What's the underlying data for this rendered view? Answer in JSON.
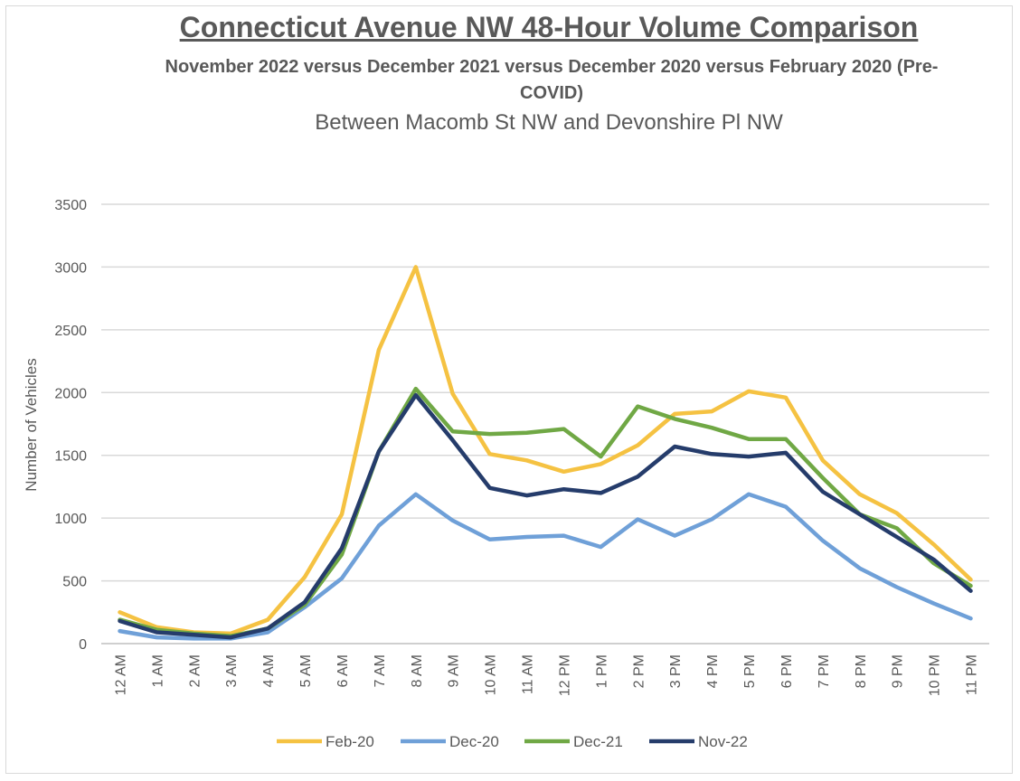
{
  "chart_data": {
    "type": "line",
    "title": "Connecticut Avenue NW 48-Hour Volume Comparison",
    "subtitle": "November 2022 versus December 2021 versus December 2020 versus February 2020 (Pre-COVID)",
    "subtitle2": "Between Macomb St NW and Devonshire Pl NW",
    "ylabel": "Number of Vehicles",
    "xlabel": "",
    "ylim": [
      0,
      3500
    ],
    "yticks": [
      0,
      500,
      1000,
      1500,
      2000,
      2500,
      3000,
      3500
    ],
    "grid": true,
    "legend_position": "bottom",
    "categories": [
      "12 AM",
      "1 AM",
      "2 AM",
      "3 AM",
      "4 AM",
      "5 AM",
      "6 AM",
      "7 AM",
      "8 AM",
      "9 AM",
      "10 AM",
      "11 AM",
      "12 PM",
      "1 PM",
      "2 PM",
      "3 PM",
      "4 PM",
      "5 PM",
      "6 PM",
      "7 PM",
      "8 PM",
      "9 PM",
      "10 PM",
      "11 PM"
    ],
    "series": [
      {
        "name": "Feb-20",
        "color": "#f5c242",
        "values": [
          250,
          130,
          90,
          80,
          190,
          530,
          1030,
          2340,
          3000,
          1990,
          1510,
          1460,
          1370,
          1430,
          1580,
          1830,
          1850,
          2010,
          1960,
          1460,
          1190,
          1040,
          790,
          510
        ]
      },
      {
        "name": "Dec-20",
        "color": "#6fa0d8",
        "values": [
          100,
          50,
          40,
          40,
          90,
          290,
          520,
          940,
          1190,
          980,
          830,
          850,
          860,
          770,
          990,
          860,
          990,
          1190,
          1090,
          820,
          600,
          450,
          320,
          200
        ]
      },
      {
        "name": "Dec-21",
        "color": "#70a845",
        "values": [
          190,
          110,
          80,
          60,
          120,
          310,
          710,
          1530,
          2030,
          1690,
          1670,
          1680,
          1710,
          1490,
          1890,
          1790,
          1720,
          1630,
          1630,
          1320,
          1030,
          920,
          640,
          460
        ]
      },
      {
        "name": "Nov-22",
        "color": "#253c6b",
        "values": [
          180,
          90,
          70,
          50,
          120,
          330,
          760,
          1530,
          1980,
          1620,
          1240,
          1180,
          1230,
          1200,
          1330,
          1570,
          1510,
          1490,
          1520,
          1210,
          1030,
          850,
          670,
          420
        ]
      }
    ]
  }
}
